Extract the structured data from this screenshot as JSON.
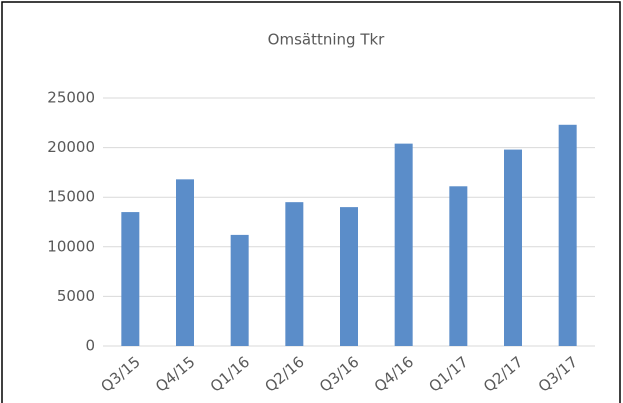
{
  "chart_data": {
    "type": "bar",
    "title": "Omsättning Tkr",
    "categories": [
      "Q3/15",
      "Q4/15",
      "Q1/16",
      "Q2/16",
      "Q3/16",
      "Q4/16",
      "Q1/17",
      "Q2/17",
      "Q3/17"
    ],
    "values": [
      13500,
      16800,
      11200,
      14500,
      14000,
      20400,
      16100,
      19800,
      22300
    ],
    "color": "#5b8dc9",
    "ylim": [
      0,
      25000
    ],
    "yticks": [
      0,
      5000,
      10000,
      15000,
      20000,
      25000
    ],
    "grid": true
  }
}
